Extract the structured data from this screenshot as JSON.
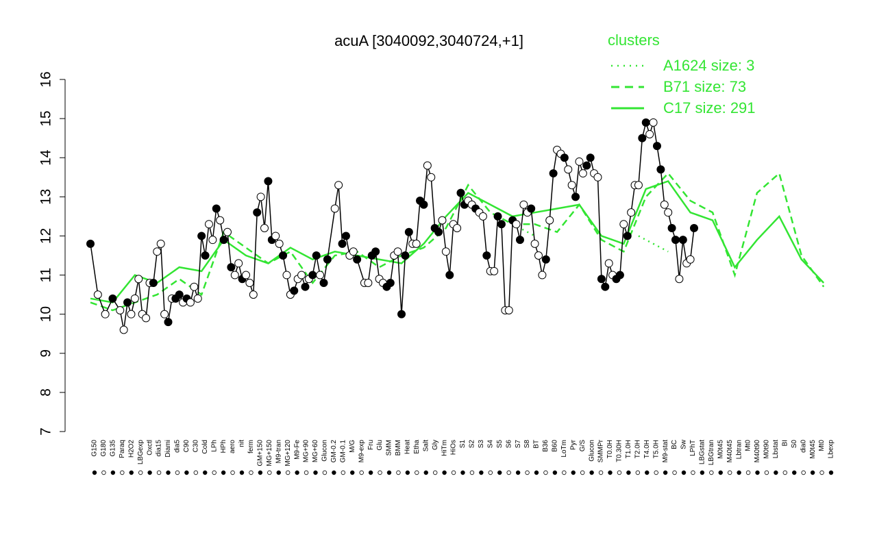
{
  "chart_data": {
    "type": "line",
    "title": "acuA [3040092,3040724,+1]",
    "xlabel": "",
    "ylabel": "",
    "ylim": [
      7,
      16
    ],
    "yticks": [
      7,
      8,
      9,
      10,
      11,
      12,
      13,
      14,
      15,
      16
    ],
    "x_labels": [
      "G150",
      "G180",
      "G135",
      "Paraq",
      "H2O2",
      "LBGexp",
      "Oxctl",
      "dia15",
      "Diami",
      "dia5",
      "C90",
      "C30",
      "Cold",
      "LPh",
      "HPh",
      "aero",
      "nit",
      "ferm",
      "GM+150",
      "MG+150",
      "M9-tran",
      "MG+120",
      "M9-Fe",
      "MG+90",
      "MG+60",
      "Glucon",
      "GM-0.2",
      "GM-0.1",
      "M/G",
      "M9-exp",
      "Fru",
      "Glu",
      "SMM",
      "BMM",
      "Heat",
      "Etha",
      "Salt",
      "Gly",
      "HiTm",
      "HiOs",
      "S1",
      "S2",
      "S3",
      "S4",
      "S5",
      "S6",
      "S7",
      "S8",
      "BT",
      "B36",
      "B60",
      "LoTm",
      "Pyr",
      "G/S",
      "Glucon",
      "SMMPr",
      "T0.0H",
      "T0.30H",
      "T1.0H",
      "T2.0H",
      "T4.0H",
      "T5.0H",
      "M9-stat",
      "BC",
      "Sw",
      "LPhT",
      "LBGstat",
      "LBGtran",
      "M0t45",
      "M40t45",
      "Lbtran",
      "Mt0",
      "M40t90",
      "M0t90",
      "Lbstat",
      "BI",
      "S0",
      "dia0",
      "M0t45",
      "Mt0",
      "Lbexp"
    ],
    "legend": {
      "title": "clusters",
      "position": "top-right",
      "entries": [
        {
          "label": "A1624 size: 3",
          "style": "dotted"
        },
        {
          "label": "B71 size: 73",
          "style": "dashed"
        },
        {
          "label": "C17 size: 291",
          "style": "solid"
        }
      ]
    },
    "colors": {
      "cluster_lines": "#33e533",
      "points": "#000000",
      "point_fill_open": "#ffffff",
      "point_fill_closed": "#000000"
    },
    "series": [
      {
        "name": "A1624 size: 3",
        "style": "dotted",
        "x": [
          0.74,
          0.78
        ],
        "values": [
          12.0,
          11.6
        ]
      },
      {
        "name": "A1624 size: 3",
        "style": "dotted",
        "x": [
          0.57,
          0.6
        ],
        "values": [
          12.3,
          12.0
        ]
      },
      {
        "name": "B71 size: 73",
        "style": "dashed",
        "x": [
          0.0,
          0.03,
          0.06,
          0.09,
          0.12,
          0.15,
          0.18,
          0.21,
          0.24,
          0.27,
          0.3,
          0.33,
          0.36,
          0.39,
          0.42,
          0.45,
          0.48,
          0.51,
          0.54,
          0.57,
          0.6,
          0.63,
          0.66,
          0.69,
          0.72,
          0.75,
          0.78,
          0.81,
          0.84,
          0.87,
          0.9,
          0.93,
          0.96,
          0.99
        ],
        "values": [
          10.3,
          10.1,
          10.3,
          10.5,
          10.9,
          10.5,
          12.1,
          11.7,
          11.3,
          11.6,
          10.8,
          11.5,
          11.6,
          11.2,
          11.5,
          11.7,
          12.2,
          13.3,
          12.6,
          12.3,
          12.3,
          12.1,
          12.8,
          11.9,
          11.6,
          13.0,
          13.6,
          12.9,
          12.6,
          11.0,
          13.1,
          13.6,
          11.5,
          10.7
        ]
      },
      {
        "name": "C17 size: 291",
        "style": "solid",
        "x": [
          0.0,
          0.03,
          0.06,
          0.09,
          0.12,
          0.15,
          0.18,
          0.21,
          0.24,
          0.27,
          0.3,
          0.33,
          0.36,
          0.39,
          0.42,
          0.45,
          0.48,
          0.51,
          0.54,
          0.57,
          0.6,
          0.63,
          0.66,
          0.69,
          0.72,
          0.75,
          0.78,
          0.81,
          0.84,
          0.87,
          0.9,
          0.93,
          0.96,
          0.99
        ],
        "values": [
          10.4,
          10.3,
          11.0,
          10.8,
          11.2,
          11.1,
          11.9,
          11.5,
          11.3,
          11.7,
          11.4,
          11.6,
          11.5,
          11.4,
          11.3,
          11.8,
          12.5,
          13.1,
          12.8,
          12.5,
          12.6,
          12.7,
          12.8,
          12.0,
          11.8,
          13.2,
          13.4,
          12.6,
          12.4,
          11.2,
          11.9,
          12.5,
          11.4,
          10.8
        ]
      }
    ],
    "points": [
      {
        "x": 0.0,
        "y": 11.8,
        "filled": true
      },
      {
        "x": 0.01,
        "y": 10.5,
        "filled": false
      },
      {
        "x": 0.02,
        "y": 10.0,
        "filled": false
      },
      {
        "x": 0.03,
        "y": 10.4,
        "filled": true
      },
      {
        "x": 0.04,
        "y": 10.1,
        "filled": false
      },
      {
        "x": 0.045,
        "y": 9.6,
        "filled": false
      },
      {
        "x": 0.05,
        "y": 10.3,
        "filled": true
      },
      {
        "x": 0.055,
        "y": 10.0,
        "filled": false
      },
      {
        "x": 0.06,
        "y": 10.4,
        "filled": false
      },
      {
        "x": 0.065,
        "y": 10.9,
        "filled": false
      },
      {
        "x": 0.07,
        "y": 10.0,
        "filled": false
      },
      {
        "x": 0.075,
        "y": 9.9,
        "filled": false
      },
      {
        "x": 0.08,
        "y": 10.8,
        "filled": false
      },
      {
        "x": 0.085,
        "y": 10.8,
        "filled": true
      },
      {
        "x": 0.09,
        "y": 11.6,
        "filled": false
      },
      {
        "x": 0.095,
        "y": 11.8,
        "filled": false
      },
      {
        "x": 0.1,
        "y": 10.0,
        "filled": false
      },
      {
        "x": 0.105,
        "y": 9.8,
        "filled": true
      },
      {
        "x": 0.11,
        "y": 10.4,
        "filled": false
      },
      {
        "x": 0.115,
        "y": 10.4,
        "filled": true
      },
      {
        "x": 0.12,
        "y": 10.5,
        "filled": true
      },
      {
        "x": 0.125,
        "y": 10.3,
        "filled": false
      },
      {
        "x": 0.13,
        "y": 10.4,
        "filled": true
      },
      {
        "x": 0.135,
        "y": 10.3,
        "filled": false
      },
      {
        "x": 0.14,
        "y": 10.7,
        "filled": false
      },
      {
        "x": 0.145,
        "y": 10.4,
        "filled": false
      },
      {
        "x": 0.15,
        "y": 12.0,
        "filled": true
      },
      {
        "x": 0.155,
        "y": 11.5,
        "filled": true
      },
      {
        "x": 0.16,
        "y": 12.3,
        "filled": false
      },
      {
        "x": 0.165,
        "y": 11.9,
        "filled": false
      },
      {
        "x": 0.17,
        "y": 12.7,
        "filled": true
      },
      {
        "x": 0.175,
        "y": 12.4,
        "filled": false
      },
      {
        "x": 0.18,
        "y": 11.9,
        "filled": true
      },
      {
        "x": 0.185,
        "y": 12.1,
        "filled": false
      },
      {
        "x": 0.19,
        "y": 11.2,
        "filled": true
      },
      {
        "x": 0.195,
        "y": 11.0,
        "filled": false
      },
      {
        "x": 0.2,
        "y": 11.3,
        "filled": false
      },
      {
        "x": 0.205,
        "y": 10.9,
        "filled": true
      },
      {
        "x": 0.21,
        "y": 11.0,
        "filled": false
      },
      {
        "x": 0.215,
        "y": 10.8,
        "filled": false
      },
      {
        "x": 0.22,
        "y": 10.5,
        "filled": false
      },
      {
        "x": 0.225,
        "y": 12.6,
        "filled": true
      },
      {
        "x": 0.23,
        "y": 13.0,
        "filled": false
      },
      {
        "x": 0.235,
        "y": 12.2,
        "filled": false
      },
      {
        "x": 0.24,
        "y": 13.4,
        "filled": true
      },
      {
        "x": 0.245,
        "y": 11.9,
        "filled": true
      },
      {
        "x": 0.25,
        "y": 12.0,
        "filled": false
      },
      {
        "x": 0.255,
        "y": 11.8,
        "filled": false
      },
      {
        "x": 0.26,
        "y": 11.5,
        "filled": true
      },
      {
        "x": 0.265,
        "y": 11.0,
        "filled": false
      },
      {
        "x": 0.27,
        "y": 10.5,
        "filled": false
      },
      {
        "x": 0.275,
        "y": 10.6,
        "filled": true
      },
      {
        "x": 0.28,
        "y": 10.9,
        "filled": false
      },
      {
        "x": 0.285,
        "y": 11.0,
        "filled": false
      },
      {
        "x": 0.29,
        "y": 10.7,
        "filled": true
      },
      {
        "x": 0.295,
        "y": 10.9,
        "filled": false
      },
      {
        "x": 0.3,
        "y": 11.0,
        "filled": true
      },
      {
        "x": 0.305,
        "y": 11.5,
        "filled": true
      },
      {
        "x": 0.31,
        "y": 11.0,
        "filled": false
      },
      {
        "x": 0.315,
        "y": 10.8,
        "filled": true
      },
      {
        "x": 0.32,
        "y": 11.4,
        "filled": true
      },
      {
        "x": 0.33,
        "y": 12.7,
        "filled": false
      },
      {
        "x": 0.335,
        "y": 13.3,
        "filled": false
      },
      {
        "x": 0.34,
        "y": 11.8,
        "filled": true
      },
      {
        "x": 0.345,
        "y": 12.0,
        "filled": true
      },
      {
        "x": 0.35,
        "y": 11.5,
        "filled": false
      },
      {
        "x": 0.355,
        "y": 11.6,
        "filled": false
      },
      {
        "x": 0.36,
        "y": 11.4,
        "filled": true
      },
      {
        "x": 0.37,
        "y": 10.8,
        "filled": false
      },
      {
        "x": 0.375,
        "y": 10.8,
        "filled": false
      },
      {
        "x": 0.38,
        "y": 11.5,
        "filled": true
      },
      {
        "x": 0.385,
        "y": 11.6,
        "filled": true
      },
      {
        "x": 0.39,
        "y": 10.9,
        "filled": false
      },
      {
        "x": 0.395,
        "y": 10.8,
        "filled": false
      },
      {
        "x": 0.4,
        "y": 10.7,
        "filled": true
      },
      {
        "x": 0.405,
        "y": 10.8,
        "filled": true
      },
      {
        "x": 0.41,
        "y": 11.5,
        "filled": false
      },
      {
        "x": 0.415,
        "y": 11.6,
        "filled": false
      },
      {
        "x": 0.42,
        "y": 10.0,
        "filled": true
      },
      {
        "x": 0.425,
        "y": 11.5,
        "filled": true
      },
      {
        "x": 0.43,
        "y": 12.1,
        "filled": true
      },
      {
        "x": 0.435,
        "y": 11.8,
        "filled": false
      },
      {
        "x": 0.44,
        "y": 11.8,
        "filled": false
      },
      {
        "x": 0.445,
        "y": 12.9,
        "filled": true
      },
      {
        "x": 0.45,
        "y": 12.8,
        "filled": true
      },
      {
        "x": 0.455,
        "y": 13.8,
        "filled": false
      },
      {
        "x": 0.46,
        "y": 13.5,
        "filled": false
      },
      {
        "x": 0.465,
        "y": 12.2,
        "filled": true
      },
      {
        "x": 0.47,
        "y": 12.1,
        "filled": true
      },
      {
        "x": 0.475,
        "y": 12.4,
        "filled": false
      },
      {
        "x": 0.48,
        "y": 11.6,
        "filled": false
      },
      {
        "x": 0.485,
        "y": 11.0,
        "filled": true
      },
      {
        "x": 0.49,
        "y": 12.3,
        "filled": false
      },
      {
        "x": 0.495,
        "y": 12.2,
        "filled": false
      },
      {
        "x": 0.5,
        "y": 13.1,
        "filled": true
      },
      {
        "x": 0.505,
        "y": 12.8,
        "filled": true
      },
      {
        "x": 0.51,
        "y": 12.9,
        "filled": false
      },
      {
        "x": 0.515,
        "y": 12.8,
        "filled": false
      },
      {
        "x": 0.52,
        "y": 12.7,
        "filled": true
      },
      {
        "x": 0.525,
        "y": 12.6,
        "filled": false
      },
      {
        "x": 0.53,
        "y": 12.5,
        "filled": false
      },
      {
        "x": 0.535,
        "y": 11.5,
        "filled": true
      },
      {
        "x": 0.54,
        "y": 11.1,
        "filled": false
      },
      {
        "x": 0.545,
        "y": 11.1,
        "filled": false
      },
      {
        "x": 0.55,
        "y": 12.5,
        "filled": true
      },
      {
        "x": 0.555,
        "y": 12.3,
        "filled": true
      },
      {
        "x": 0.56,
        "y": 10.1,
        "filled": false
      },
      {
        "x": 0.565,
        "y": 10.1,
        "filled": false
      },
      {
        "x": 0.57,
        "y": 12.4,
        "filled": true
      },
      {
        "x": 0.575,
        "y": 12.3,
        "filled": false
      },
      {
        "x": 0.58,
        "y": 11.9,
        "filled": true
      },
      {
        "x": 0.585,
        "y": 12.8,
        "filled": false
      },
      {
        "x": 0.59,
        "y": 12.6,
        "filled": false
      },
      {
        "x": 0.595,
        "y": 12.7,
        "filled": true
      },
      {
        "x": 0.6,
        "y": 11.8,
        "filled": false
      },
      {
        "x": 0.605,
        "y": 11.5,
        "filled": false
      },
      {
        "x": 0.61,
        "y": 11.0,
        "filled": false
      },
      {
        "x": 0.615,
        "y": 11.4,
        "filled": true
      },
      {
        "x": 0.62,
        "y": 12.4,
        "filled": false
      },
      {
        "x": 0.625,
        "y": 13.6,
        "filled": true
      },
      {
        "x": 0.63,
        "y": 14.2,
        "filled": false
      },
      {
        "x": 0.635,
        "y": 14.1,
        "filled": false
      },
      {
        "x": 0.64,
        "y": 14.0,
        "filled": true
      },
      {
        "x": 0.645,
        "y": 13.7,
        "filled": false
      },
      {
        "x": 0.65,
        "y": 13.3,
        "filled": false
      },
      {
        "x": 0.655,
        "y": 13.0,
        "filled": true
      },
      {
        "x": 0.66,
        "y": 13.9,
        "filled": false
      },
      {
        "x": 0.665,
        "y": 13.6,
        "filled": false
      },
      {
        "x": 0.67,
        "y": 13.8,
        "filled": true
      },
      {
        "x": 0.675,
        "y": 14.0,
        "filled": true
      },
      {
        "x": 0.68,
        "y": 13.6,
        "filled": false
      },
      {
        "x": 0.685,
        "y": 13.5,
        "filled": false
      },
      {
        "x": 0.69,
        "y": 10.9,
        "filled": true
      },
      {
        "x": 0.695,
        "y": 10.7,
        "filled": true
      },
      {
        "x": 0.7,
        "y": 11.3,
        "filled": false
      },
      {
        "x": 0.705,
        "y": 11.0,
        "filled": false
      },
      {
        "x": 0.71,
        "y": 10.9,
        "filled": true
      },
      {
        "x": 0.715,
        "y": 11.0,
        "filled": true
      },
      {
        "x": 0.72,
        "y": 12.3,
        "filled": false
      },
      {
        "x": 0.725,
        "y": 12.0,
        "filled": true
      },
      {
        "x": 0.73,
        "y": 12.6,
        "filled": false
      },
      {
        "x": 0.735,
        "y": 13.3,
        "filled": false
      },
      {
        "x": 0.74,
        "y": 13.3,
        "filled": false
      },
      {
        "x": 0.745,
        "y": 14.5,
        "filled": true
      },
      {
        "x": 0.75,
        "y": 14.9,
        "filled": true
      },
      {
        "x": 0.755,
        "y": 14.6,
        "filled": false
      },
      {
        "x": 0.76,
        "y": 14.9,
        "filled": false
      },
      {
        "x": 0.765,
        "y": 14.3,
        "filled": true
      },
      {
        "x": 0.77,
        "y": 13.7,
        "filled": true
      },
      {
        "x": 0.775,
        "y": 12.8,
        "filled": false
      },
      {
        "x": 0.78,
        "y": 12.6,
        "filled": false
      },
      {
        "x": 0.785,
        "y": 12.2,
        "filled": true
      },
      {
        "x": 0.79,
        "y": 11.9,
        "filled": true
      },
      {
        "x": 0.795,
        "y": 10.9,
        "filled": false
      },
      {
        "x": 0.8,
        "y": 11.9,
        "filled": true
      },
      {
        "x": 0.805,
        "y": 11.3,
        "filled": false
      },
      {
        "x": 0.81,
        "y": 11.4,
        "filled": false
      },
      {
        "x": 0.815,
        "y": 12.2,
        "filled": true
      }
    ]
  }
}
